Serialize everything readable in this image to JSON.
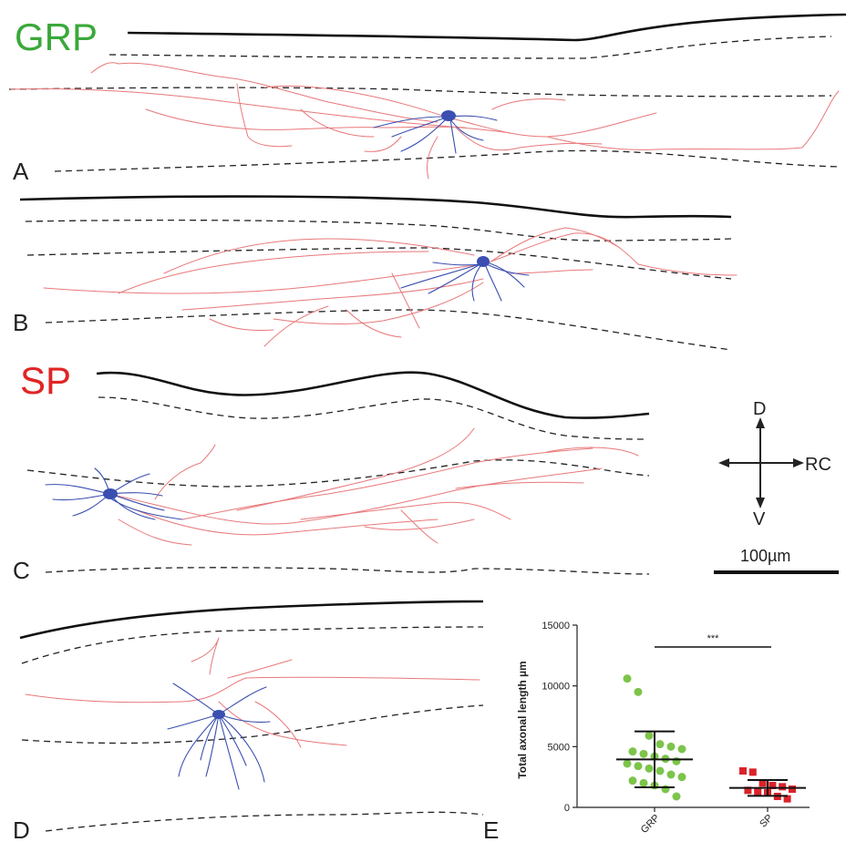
{
  "figure": {
    "group_labels": {
      "grp": "GRP",
      "sp": "SP"
    },
    "panel_letters": {
      "a": "A",
      "b": "B",
      "c": "C",
      "d": "D",
      "e": "E"
    },
    "compass": {
      "dorsal": "D",
      "ventral": "V",
      "rostrocaudal": "RC"
    },
    "scale_bar": {
      "label": "100µm"
    },
    "colors": {
      "grp_title": "#3aa83a",
      "sp_title": "#e02525",
      "axon": "#e8787a",
      "dendrite": "#3a4fb0",
      "grp_points": "#7cc44a",
      "sp_points": "#d9232a"
    }
  },
  "chart_data": {
    "type": "scatter",
    "ylabel": "Total axonal length µm",
    "ylim": [
      0,
      15000
    ],
    "yticks": [
      0,
      5000,
      10000,
      15000
    ],
    "categories": [
      "GRP",
      "SP"
    ],
    "significance": "***",
    "series": [
      {
        "name": "GRP",
        "marker": "circle",
        "mean": 3950,
        "sd_low": 1650,
        "sd_high": 6250,
        "values": [
          10600,
          9500,
          5900,
          5200,
          5000,
          4800,
          4600,
          4400,
          4200,
          4000,
          3800,
          3600,
          3400,
          3200,
          3000,
          2700,
          2500,
          2200,
          2000,
          1800,
          1500,
          900
        ]
      },
      {
        "name": "SP",
        "marker": "square",
        "mean": 1600,
        "sd_low": 950,
        "sd_high": 2250,
        "values": [
          3000,
          2900,
          2000,
          1800,
          1700,
          1500,
          1400,
          1300,
          1200,
          900,
          700
        ]
      }
    ]
  }
}
